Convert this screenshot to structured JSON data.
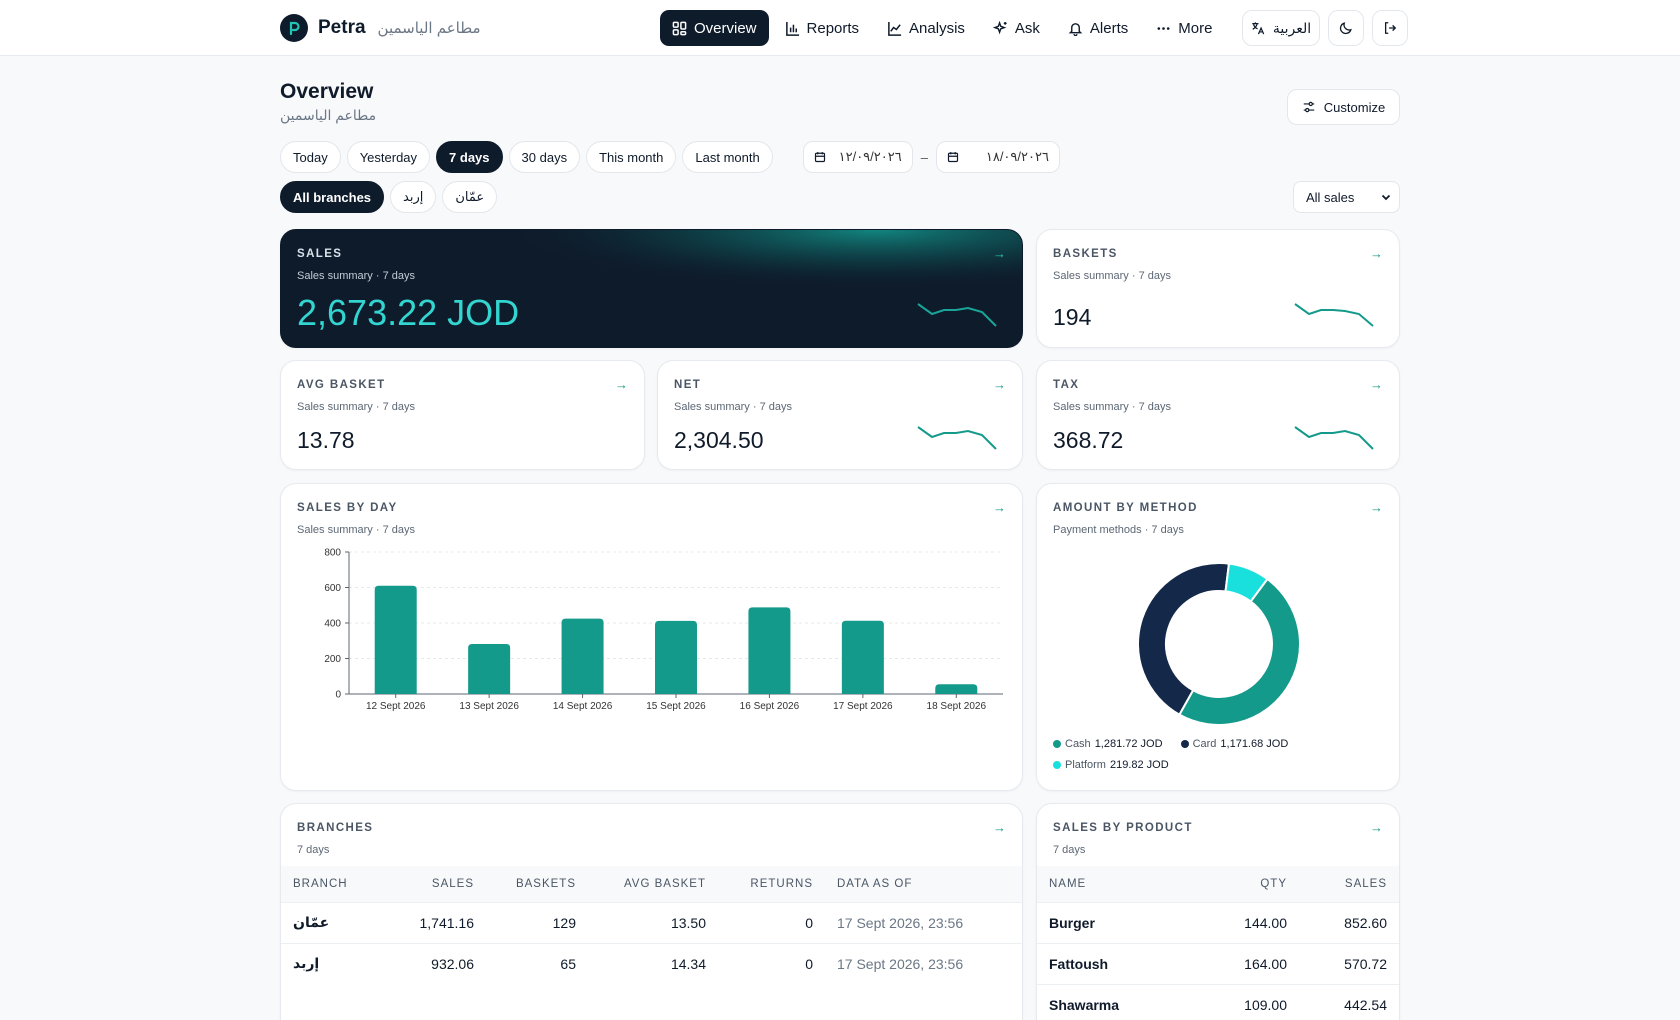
{
  "brand": {
    "name": "Petra",
    "subtitle": "مطاعم الياسمين"
  },
  "nav": [
    {
      "label": "Overview",
      "icon": "grid-icon",
      "active": true
    },
    {
      "label": "Reports",
      "icon": "bar-chart-icon",
      "active": false
    },
    {
      "label": "Analysis",
      "icon": "line-chart-icon",
      "active": false
    },
    {
      "label": "Ask",
      "icon": "sparkle-icon",
      "active": false
    },
    {
      "label": "Alerts",
      "icon": "bell-icon",
      "active": false
    },
    {
      "label": "More",
      "icon": "dots-icon",
      "active": false
    }
  ],
  "top_actions": {
    "language_label": "العربية"
  },
  "page": {
    "title": "Overview",
    "subtitle": "مطاعم الياسمين",
    "customize_label": "Customize"
  },
  "periods": [
    {
      "label": "Today",
      "active": false
    },
    {
      "label": "Yesterday",
      "active": false
    },
    {
      "label": "7 days",
      "active": true
    },
    {
      "label": "30 days",
      "active": false
    },
    {
      "label": "This month",
      "active": false
    },
    {
      "label": "Last month",
      "active": false
    }
  ],
  "date_range": {
    "from": "١٢/٠٩/٢٠٢٦",
    "to": "١٨/٠٩/٢٠٢٦",
    "separator": "–"
  },
  "branch_filters": [
    {
      "label": "All branches",
      "active": true
    },
    {
      "label": "إربد",
      "active": false
    },
    {
      "label": "عمّان",
      "active": false
    }
  ],
  "sales_filter": {
    "value": "All sales"
  },
  "kpis": {
    "sales": {
      "title": "SALES",
      "subtitle": "Sales summary · 7 days",
      "value": "2,673.22 JOD"
    },
    "baskets": {
      "title": "BASKETS",
      "subtitle": "Sales summary · 7 days",
      "value": "194"
    },
    "avg_basket": {
      "title": "AVG BASKET",
      "subtitle": "Sales summary · 7 days",
      "value": "13.78"
    },
    "net": {
      "title": "NET",
      "subtitle": "Sales summary · 7 days",
      "value": "2,304.50"
    },
    "tax": {
      "title": "TAX",
      "subtitle": "Sales summary · 7 days",
      "value": "368.72"
    }
  },
  "arrow_symbol": "→",
  "sales_by_day": {
    "title": "SALES BY DAY",
    "subtitle": "Sales summary · 7 days"
  },
  "amount_by_method": {
    "title": "AMOUNT BY METHOD",
    "subtitle": "Payment methods · 7 days",
    "legend": [
      {
        "name": "Cash",
        "value": "1,281.72 JOD",
        "color": "#149a8a"
      },
      {
        "name": "Card",
        "value": "1,171.68 JOD",
        "color": "#14294a"
      },
      {
        "name": "Platform",
        "value": "219.82 JOD",
        "color": "#19e0dd"
      }
    ]
  },
  "chart_data": [
    {
      "type": "bar",
      "categories": [
        "12 Sept 2026",
        "13 Sept 2026",
        "14 Sept 2026",
        "15 Sept 2026",
        "16 Sept 2026",
        "17 Sept 2026",
        "18 Sept 2026"
      ],
      "values": [
        610,
        282,
        425,
        412,
        488,
        413,
        55
      ],
      "ylim": [
        0,
        800
      ],
      "yticks": [
        "0",
        "200",
        "400",
        "600",
        "800"
      ],
      "grid": true,
      "color": "#149a8a"
    },
    {
      "type": "pie",
      "donut": true,
      "labels": [
        "Cash",
        "Card",
        "Platform"
      ],
      "values": [
        1281.72,
        1171.68,
        219.82
      ],
      "colors": [
        "#149a8a",
        "#14294a",
        "#19e0dd"
      ]
    }
  ],
  "branches": {
    "title": "BRANCHES",
    "subtitle": "7 days",
    "columns": [
      "BRANCH",
      "SALES",
      "BASKETS",
      "AVG BASKET",
      "RETURNS",
      "DATA AS OF"
    ],
    "rows": [
      [
        "عمّان",
        "1,741.16",
        "129",
        "13.50",
        "0",
        "17 Sept 2026, 23:56"
      ],
      [
        "إربد",
        "932.06",
        "65",
        "14.34",
        "0",
        "17 Sept 2026, 23:56"
      ]
    ]
  },
  "sales_by_product": {
    "title": "SALES BY PRODUCT",
    "subtitle": "7 days",
    "columns": [
      "NAME",
      "QTY",
      "SALES"
    ],
    "rows": [
      [
        "Burger",
        "144.00",
        "852.60"
      ],
      [
        "Fattoush",
        "164.00",
        "570.72"
      ],
      [
        "Shawarma",
        "109.00",
        "442.54"
      ]
    ]
  }
}
